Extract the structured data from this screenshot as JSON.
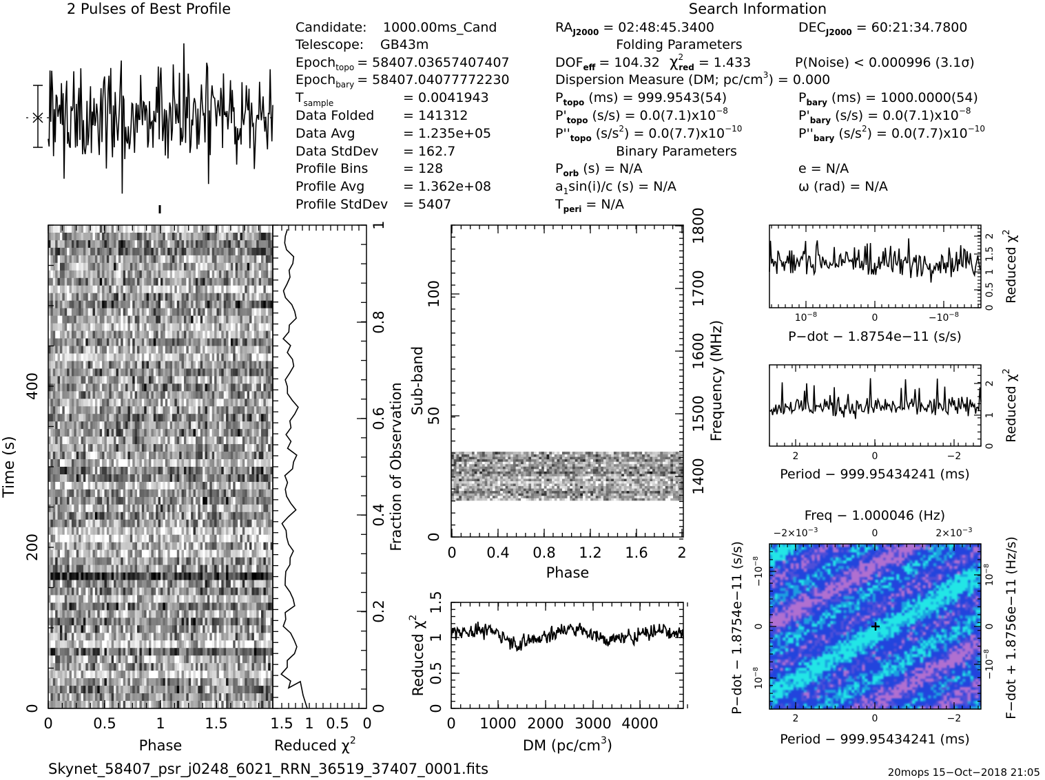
{
  "header": {
    "profile_title": "2 Pulses of Best Profile",
    "search_title": "Search Information"
  },
  "candidate_info": [
    {
      "label": "Candidate:",
      "value": "1000.00ms_Cand"
    },
    {
      "label": "Telescope:",
      "value": "GB43m"
    },
    {
      "label": "Epoch",
      "sub": "topo",
      "value": "= 58407.03657407407"
    },
    {
      "label": "Epoch",
      "sub": "bary",
      "value": "= 58407.04077772230"
    },
    {
      "label": "T",
      "sub": "sample",
      "value": "=  0.0041943"
    },
    {
      "label": "Data Folded",
      "value": "=  141312"
    },
    {
      "label": "Data Avg",
      "value": "=  1.235e+05"
    },
    {
      "label": "Data StdDev",
      "value": "=  162.7"
    },
    {
      "label": "Profile Bins",
      "value": "=  128"
    },
    {
      "label": "Profile Avg",
      "value": "=  1.362e+08"
    },
    {
      "label": "Profile StdDev",
      "value": "=  5407"
    }
  ],
  "search_info": {
    "ra": "RA",
    "ra_sub": "J2000",
    "ra_value": "= 02:48:45.3400",
    "dec": "DEC",
    "dec_sub": "J2000",
    "dec_value": "= 60:21:34.7800",
    "folding_title": "Folding Parameters",
    "dof": "DOF",
    "dof_sub": "eff",
    "dof_value": "= 104.32",
    "chi": "χ",
    "chi_sup": "2",
    "chi_sub": "red",
    "chi_value": "= 1.433",
    "pnoise": "P(Noise) < 0.000996   (3.1σ)",
    "dm_line": "Dispersion Measure (DM; pc/cm",
    "dm_sup": "3",
    "dm_value": ") = 0.000",
    "ptopo": "P",
    "ptopo_sub": "topo",
    "ptopo_value": "(ms) =  999.9543(54)",
    "pbary": "P",
    "pbary_sub": "bary",
    "pbary_value": "(ms) =  1000.0000(54)",
    "pdtopo": "P'",
    "pdtopo_sub": "topo",
    "pdtopo_value": "(s/s) = 0.0(7.1)x10",
    "pdtopo_exp": "−8",
    "pdbary": "P'",
    "pdbary_sub": "bary",
    "pdbary_value": "(s/s) = 0.0(7.1)x10",
    "pdbary_exp": "−8",
    "pddtopo": "P''",
    "pddtopo_sub": "topo",
    "pddtopo_value": "(s/s",
    "pddtopo_mid": ") = 0.0(7.7)x10",
    "pddtopo_exp": "−10",
    "pddbary": "P''",
    "pddbary_sub": "bary",
    "pddbary_value": "(s/s",
    "pddbary_mid": ") = 0.0(7.7)x10",
    "pddbary_exp": "−10",
    "binary_title": "Binary Parameters",
    "porb": "P",
    "porb_sub": "orb",
    "porb_value": "(s) = N/A",
    "e_value": "e = N/A",
    "a1": "a",
    "a1_sub": "1",
    "a1_value": "sin(i)/c (s) = N/A",
    "omega_value": "ω (rad) = N/A",
    "tperi": "T",
    "tperi_sub": "peri",
    "tperi_value": "= N/A"
  },
  "footer": {
    "filename": "Skynet_58407_psr_j0248_6021_RRN_36519_37407_0001.fits",
    "stamp": "20mops 15−Oct−2018 21:05"
  },
  "colors": {
    "ink": "#000000",
    "ppdot_bg": "#2244dd",
    "ppdot_hi": "#22e6e6",
    "ppdot_lo": "#b070d0"
  },
  "chart_data": [
    {
      "type": "line",
      "name": "profile",
      "title": "2 Pulses of Best Profile",
      "x": "phase 0–2 (256 bins)",
      "ylim": "relative",
      "note_values": "noise-like profile"
    },
    {
      "type": "heatmap",
      "name": "time-phase",
      "xlabel": "Phase",
      "ylabel": "Time (s)",
      "xlim": [
        0,
        1.5
      ],
      "ylim": [
        0,
        560
      ],
      "xticks": [
        "0",
        "0.5",
        "1",
        "1.5"
      ],
      "yticks": [
        "0",
        "200",
        "400"
      ]
    },
    {
      "type": "line",
      "name": "time-chi2",
      "xlabel": "Reduced χ",
      "xlabel_sup": "2",
      "right_label": "Fraction of Observation",
      "xticks": [
        "1.5",
        "1",
        "0.5",
        "0"
      ],
      "yticks_right": [
        "0",
        "0.2",
        "0.4",
        "0.6",
        "0.8",
        "1"
      ]
    },
    {
      "type": "heatmap",
      "name": "subband-phase",
      "xlabel": "Phase",
      "ylabel": "Sub-band",
      "right_label": "Frequency (MHz)",
      "xlim": [
        0,
        2
      ],
      "ylim": [
        0,
        128
      ],
      "xticks": [
        "0",
        "0.4",
        "0.8",
        "1.2",
        "1.6",
        "2"
      ],
      "yticks": [
        "0",
        "50",
        "100"
      ],
      "yticks_right": [
        "1400",
        "1500",
        "1600",
        "1700",
        "1800"
      ],
      "band_rows": [
        15,
        35
      ]
    },
    {
      "type": "line",
      "name": "dm-chi2",
      "xlabel": "DM (pc/cm",
      "xlabel_sup": "3",
      "xlabel_end": ")",
      "ylabel": "Reduced χ",
      "ylabel_sup": "2",
      "xlim": [
        0,
        4900
      ],
      "ylim": [
        0,
        1.5
      ],
      "xticks": [
        "0",
        "1000",
        "2000",
        "3000",
        "4000"
      ],
      "yticks": [
        "0",
        "0.5",
        "1",
        "1.5"
      ]
    },
    {
      "type": "line",
      "name": "pdot-chi2",
      "xlabel": "P−dot − 1.8754e−11 (s/s)",
      "ylabel": "Reduced χ",
      "ylabel_sup": "2",
      "ylim": [
        0,
        2.3
      ],
      "xticks": [
        "10",
        "0",
        "−10"
      ],
      "xticks_exp": [
        "−8",
        "",
        "−8"
      ],
      "yticks": [
        "0",
        "0.5",
        "1",
        "1.5",
        "2"
      ]
    },
    {
      "type": "line",
      "name": "period-chi2",
      "xlabel": "Period − 999.95434241 (ms)",
      "ylabel": "Reduced χ",
      "ylabel_sup": "2",
      "ylim": [
        0,
        2.6
      ],
      "xticks": [
        "2",
        "0",
        "−2"
      ],
      "yticks": [
        "0",
        "1",
        "2"
      ]
    },
    {
      "type": "heatmap",
      "name": "period-pdot",
      "top_label": "Freq − 1.000046 (Hz)",
      "top_ticks": [
        "−2×10",
        "0",
        "2×10"
      ],
      "top_ticks_exp": [
        "−3",
        "",
        "−3"
      ],
      "xlabel": "Period − 999.95434241 (ms)",
      "xticks": [
        "2",
        "0",
        "−2"
      ],
      "ylabel": "P−dot − 1.8754e−11 (s/s)",
      "yticks": [
        "−10",
        "0",
        "10"
      ],
      "yticks_exp": [
        "−8",
        "",
        "−8"
      ],
      "right_label": "F−dot + 1.8756e−11 (Hz/s)",
      "yticks_right": [
        "10",
        "0",
        "−10"
      ],
      "yticks_right_exp": [
        "−8",
        "",
        "−8"
      ]
    }
  ]
}
